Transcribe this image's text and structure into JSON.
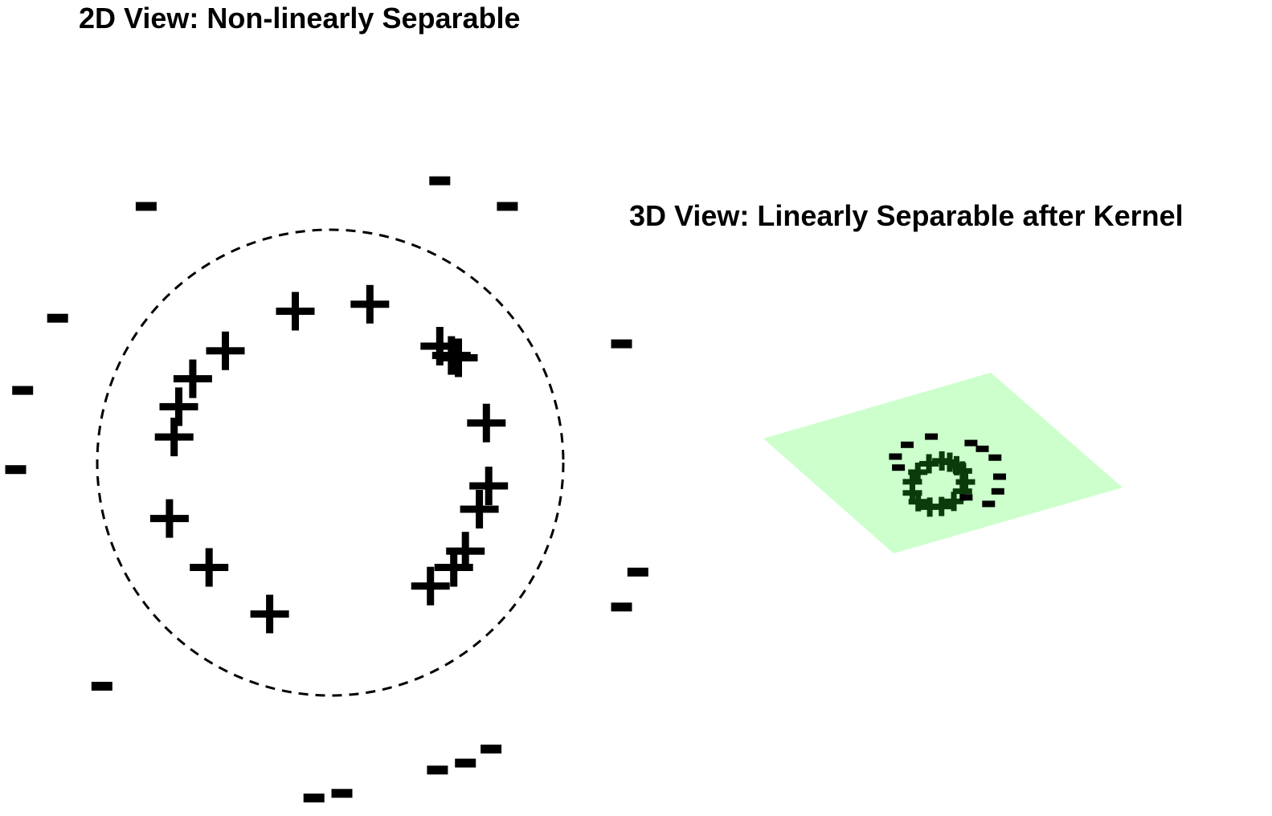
{
  "panels": {
    "left": {
      "title": "2D View: Non-linearly Separable"
    },
    "right": {
      "title": "3D View: Linearly Separable after Kernel"
    }
  },
  "markers": {
    "positive": "+",
    "negative": "−"
  },
  "colors": {
    "marker": "#000000",
    "plane": "#ccffcc",
    "marker_on_plane": "#0b3b0b",
    "boundary": "#000000"
  },
  "chart_data": [
    {
      "type": "scatter",
      "name": "2d-view",
      "title": "2D View: Non-linearly Separable",
      "boundary": {
        "shape": "circle",
        "style": "dashed"
      },
      "xlabel": "",
      "ylabel": "",
      "axes_visible": false,
      "grid": false,
      "points": [
        {
          "x": -0.15,
          "y": 0.65,
          "label": "+"
        },
        {
          "x": 0.17,
          "y": 0.68,
          "label": "+"
        },
        {
          "x": -0.45,
          "y": 0.48,
          "label": "+"
        },
        {
          "x": -0.59,
          "y": 0.36,
          "label": "+"
        },
        {
          "x": -0.65,
          "y": 0.24,
          "label": "+"
        },
        {
          "x": -0.67,
          "y": 0.11,
          "label": "+"
        },
        {
          "x": 0.47,
          "y": 0.5,
          "label": "+"
        },
        {
          "x": 0.52,
          "y": 0.46,
          "label": "+"
        },
        {
          "x": 0.55,
          "y": 0.45,
          "label": "+"
        },
        {
          "x": 0.67,
          "y": 0.17,
          "label": "+"
        },
        {
          "x": 0.68,
          "y": -0.1,
          "label": "+"
        },
        {
          "x": 0.64,
          "y": -0.2,
          "label": "+"
        },
        {
          "x": 0.58,
          "y": -0.38,
          "label": "+"
        },
        {
          "x": 0.53,
          "y": -0.45,
          "label": "+"
        },
        {
          "x": 0.43,
          "y": -0.53,
          "label": "+"
        },
        {
          "x": -0.69,
          "y": -0.24,
          "label": "+"
        },
        {
          "x": -0.52,
          "y": -0.45,
          "label": "+"
        },
        {
          "x": -0.26,
          "y": -0.65,
          "label": "+"
        },
        {
          "x": 0.47,
          "y": 1.21,
          "label": "−"
        },
        {
          "x": -0.79,
          "y": 1.1,
          "label": "−"
        },
        {
          "x": 0.76,
          "y": 1.1,
          "label": "−"
        },
        {
          "x": -1.17,
          "y": 0.62,
          "label": "−"
        },
        {
          "x": -1.32,
          "y": 0.31,
          "label": "−"
        },
        {
          "x": -1.35,
          "y": -0.03,
          "label": "−"
        },
        {
          "x": 1.25,
          "y": 0.51,
          "label": "−"
        },
        {
          "x": 1.32,
          "y": -0.47,
          "label": "−"
        },
        {
          "x": 1.25,
          "y": -0.62,
          "label": "−"
        },
        {
          "x": -0.98,
          "y": -0.96,
          "label": "−"
        },
        {
          "x": 0.46,
          "y": -1.32,
          "label": "−"
        },
        {
          "x": 0.58,
          "y": -1.29,
          "label": "−"
        },
        {
          "x": 0.69,
          "y": -1.23,
          "label": "−"
        },
        {
          "x": -0.07,
          "y": -1.44,
          "label": "−"
        },
        {
          "x": 0.05,
          "y": -1.42,
          "label": "−"
        }
      ]
    },
    {
      "type": "scatter",
      "name": "3d-view",
      "title": "3D View: Linearly Separable after Kernel",
      "plane": {
        "visible": true
      },
      "axes_visible": false,
      "grid": false,
      "points": [
        {
          "x": 0.0,
          "y": 0.5,
          "label": "+"
        },
        {
          "x": 0.15,
          "y": 0.47,
          "label": "+"
        },
        {
          "x": 0.3,
          "y": 0.4,
          "label": "+"
        },
        {
          "x": 0.45,
          "y": 0.2,
          "label": "+"
        },
        {
          "x": 0.48,
          "y": 0.0,
          "label": "+"
        },
        {
          "x": 0.42,
          "y": -0.25,
          "label": "+"
        },
        {
          "x": 0.25,
          "y": -0.42,
          "label": "+"
        },
        {
          "x": 0.05,
          "y": -0.5,
          "label": "+"
        },
        {
          "x": -0.2,
          "y": -0.46,
          "label": "+"
        },
        {
          "x": -0.38,
          "y": -0.32,
          "label": "+"
        },
        {
          "x": -0.48,
          "y": -0.1,
          "label": "+"
        },
        {
          "x": -0.47,
          "y": 0.12,
          "label": "+"
        },
        {
          "x": -0.35,
          "y": 0.35,
          "label": "+"
        },
        {
          "x": -0.15,
          "y": 0.48,
          "label": "+"
        },
        {
          "x": 0.2,
          "y": 1.0,
          "label": "−"
        },
        {
          "x": 0.45,
          "y": 0.95,
          "label": "−"
        },
        {
          "x": 0.75,
          "y": 0.85,
          "label": "−"
        },
        {
          "x": -0.55,
          "y": 0.9,
          "label": "−"
        },
        {
          "x": -0.9,
          "y": 0.6,
          "label": "−"
        },
        {
          "x": -1.0,
          "y": 0.3,
          "label": "−"
        },
        {
          "x": 1.0,
          "y": 0.5,
          "label": "−"
        },
        {
          "x": 1.05,
          "y": -0.1,
          "label": "−"
        },
        {
          "x": 0.6,
          "y": -0.1,
          "label": "−"
        },
        {
          "x": -0.85,
          "y": 0.1,
          "label": "−"
        },
        {
          "x": 1.1,
          "y": 0.2,
          "label": "−"
        }
      ]
    }
  ]
}
